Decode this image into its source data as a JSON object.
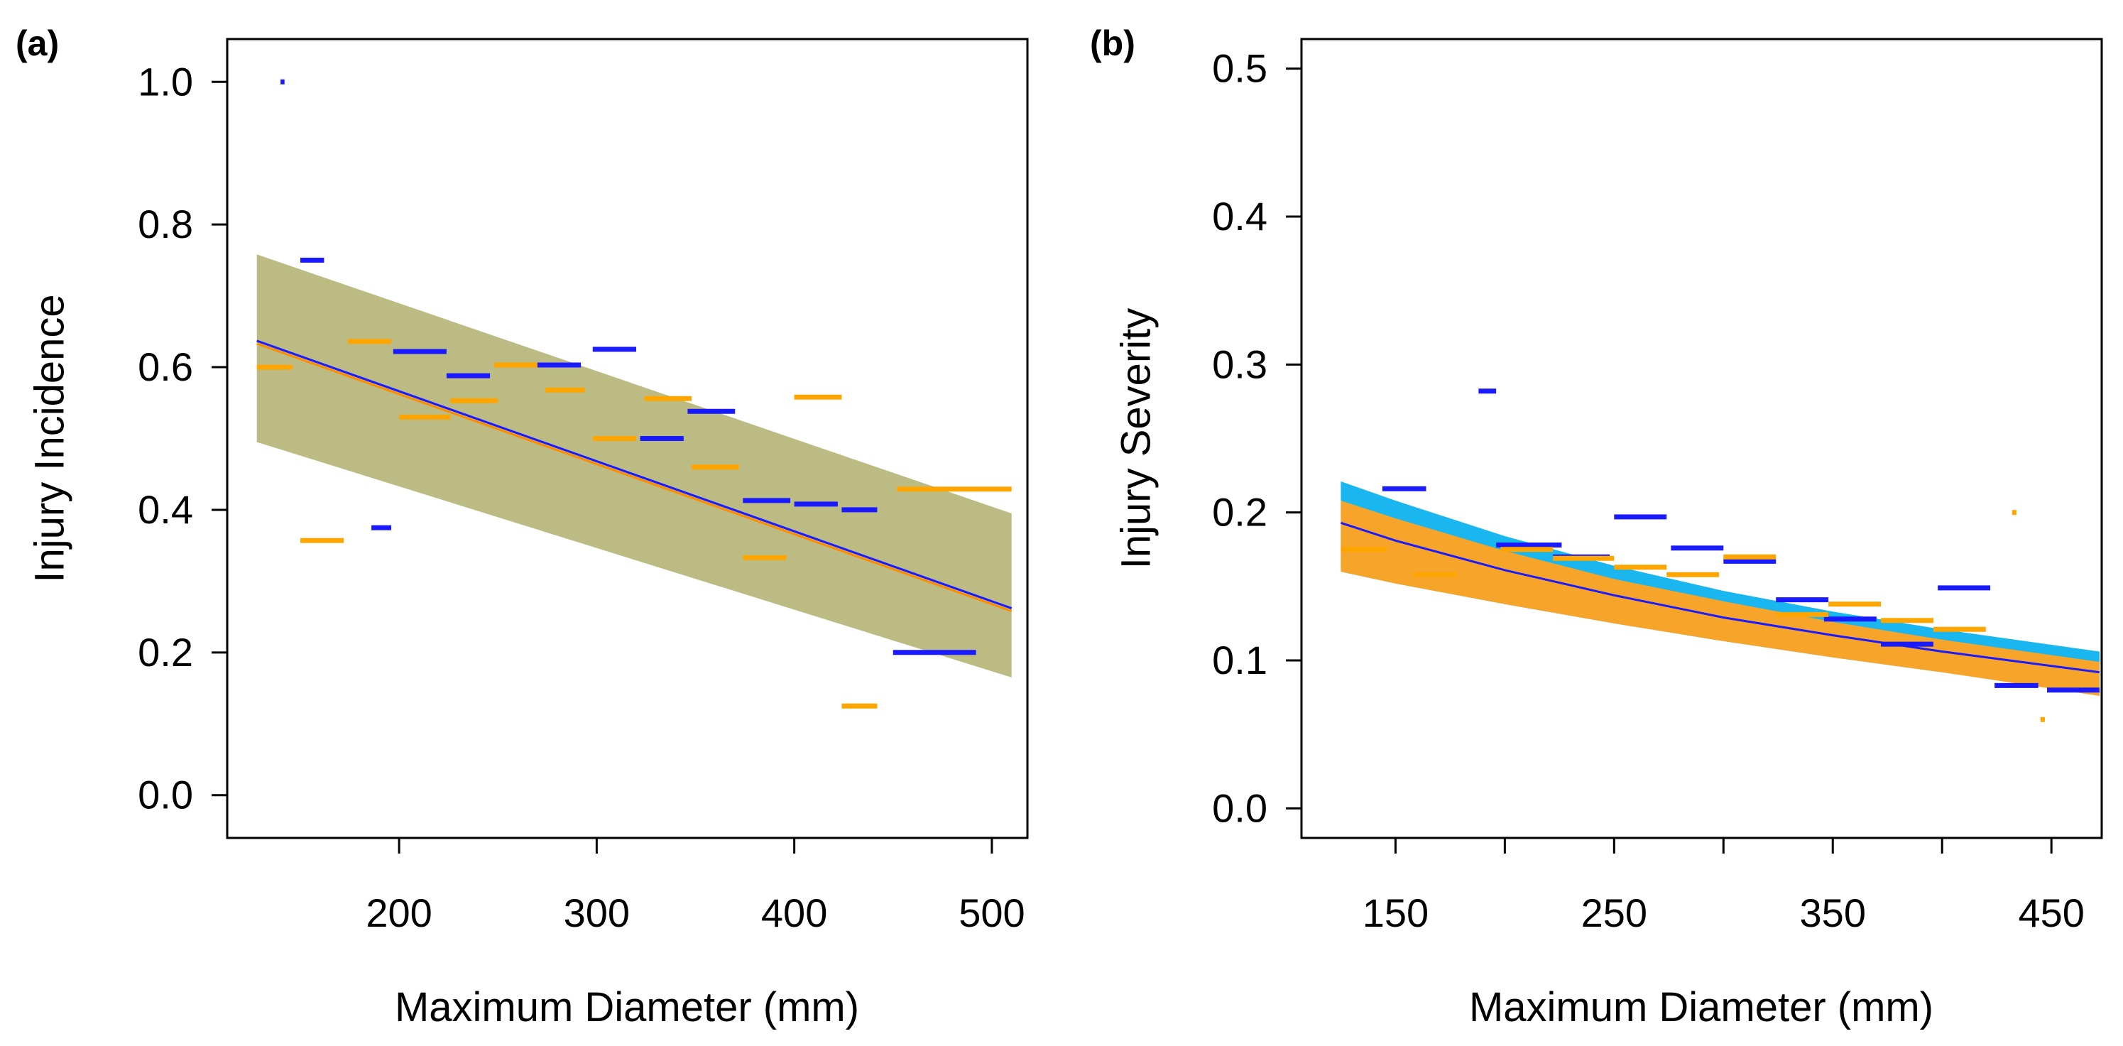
{
  "chart_data": [
    {
      "type": "scatter",
      "panel_label": "(a)",
      "xlabel": "Maximum Diameter (mm)",
      "ylabel": "Injury Incidence",
      "xlim": [
        113,
        518
      ],
      "ylim": [
        -0.06,
        1.06
      ],
      "xticks": [
        200,
        300,
        400,
        500
      ],
      "xtick_labels": [
        "200",
        "300",
        "400",
        "500"
      ],
      "yticks": [
        0.0,
        0.2,
        0.4,
        0.6,
        0.8,
        1.0
      ],
      "ytick_labels": [
        "0.0",
        "0.2",
        "0.4",
        "0.6",
        "0.8",
        "1.0"
      ],
      "band": {
        "color": "#bdbb84",
        "x": [
          128,
          510
        ],
        "lower": [
          0.495,
          0.165
        ],
        "upper": [
          0.758,
          0.395
        ]
      },
      "fit_lines": [
        {
          "name": "orange fit",
          "color": "#ff8c00",
          "x": [
            128,
            510
          ],
          "y": [
            0.633,
            0.258
          ]
        },
        {
          "name": "blue fit",
          "color": "#1a1aff",
          "x": [
            128,
            510
          ],
          "y": [
            0.637,
            0.262
          ]
        }
      ],
      "series": [
        {
          "name": "blue",
          "color": "#1a1aff",
          "segments": [
            {
              "x0": 140,
              "x1": 142,
              "y": 1.0
            },
            {
              "x0": 150,
              "x1": 162,
              "y": 0.75
            },
            {
              "x0": 186,
              "x1": 196,
              "y": 0.375
            },
            {
              "x0": 197,
              "x1": 224,
              "y": 0.622
            },
            {
              "x0": 224,
              "x1": 246,
              "y": 0.588
            },
            {
              "x0": 268,
              "x1": 292,
              "y": 0.603
            },
            {
              "x0": 298,
              "x1": 320,
              "y": 0.625
            },
            {
              "x0": 322,
              "x1": 344,
              "y": 0.5
            },
            {
              "x0": 346,
              "x1": 370,
              "y": 0.538
            },
            {
              "x0": 374,
              "x1": 398,
              "y": 0.413
            },
            {
              "x0": 400,
              "x1": 422,
              "y": 0.408
            },
            {
              "x0": 424,
              "x1": 442,
              "y": 0.4
            },
            {
              "x0": 450,
              "x1": 492,
              "y": 0.2
            }
          ]
        },
        {
          "name": "orange",
          "color": "#ffa500",
          "segments": [
            {
              "x0": 128,
              "x1": 146,
              "y": 0.6
            },
            {
              "x0": 150,
              "x1": 172,
              "y": 0.357
            },
            {
              "x0": 174,
              "x1": 196,
              "y": 0.636
            },
            {
              "x0": 200,
              "x1": 226,
              "y": 0.53
            },
            {
              "x0": 226,
              "x1": 250,
              "y": 0.553
            },
            {
              "x0": 248,
              "x1": 270,
              "y": 0.603
            },
            {
              "x0": 274,
              "x1": 294,
              "y": 0.568
            },
            {
              "x0": 298,
              "x1": 320,
              "y": 0.5
            },
            {
              "x0": 324,
              "x1": 348,
              "y": 0.556
            },
            {
              "x0": 348,
              "x1": 372,
              "y": 0.46
            },
            {
              "x0": 374,
              "x1": 396,
              "y": 0.333
            },
            {
              "x0": 400,
              "x1": 424,
              "y": 0.558
            },
            {
              "x0": 424,
              "x1": 442,
              "y": 0.125
            },
            {
              "x0": 452,
              "x1": 510,
              "y": 0.429
            }
          ]
        }
      ]
    },
    {
      "type": "scatter",
      "panel_label": "(b)",
      "xlabel": "Maximum Diameter (mm)",
      "ylabel": "Injury Severity",
      "xlim": [
        107,
        473
      ],
      "ylim": [
        -0.02,
        0.52
      ],
      "xticks": [
        150,
        200,
        250,
        300,
        350,
        400,
        450
      ],
      "xtick_labels": [
        "150",
        "",
        "250",
        "",
        "350",
        "",
        "450"
      ],
      "yticks": [
        0.0,
        0.1,
        0.2,
        0.3,
        0.4,
        0.5
      ],
      "ytick_labels": [
        "0.0",
        "0.1",
        "0.2",
        "0.3",
        "0.4",
        "0.5"
      ],
      "bands": [
        {
          "name": "blue ci",
          "color": "#19b6f0",
          "x": [
            125,
            150,
            200,
            250,
            300,
            350,
            400,
            472
          ],
          "lower": [
            0.16,
            0.152,
            0.138,
            0.125,
            0.113,
            0.102,
            0.092,
            0.078
          ],
          "upper": [
            0.221,
            0.208,
            0.184,
            0.164,
            0.147,
            0.133,
            0.121,
            0.106
          ]
        },
        {
          "name": "orange ci",
          "color": "#f7a52a",
          "x": [
            125,
            150,
            200,
            250,
            300,
            350,
            400,
            472
          ],
          "lower": [
            0.16,
            0.152,
            0.138,
            0.125,
            0.113,
            0.102,
            0.092,
            0.076
          ],
          "upper": [
            0.208,
            0.196,
            0.174,
            0.155,
            0.14,
            0.126,
            0.114,
            0.099
          ]
        }
      ],
      "fit_lines": [
        {
          "name": "blue fit",
          "color": "#1a1aff",
          "x": [
            125,
            150,
            200,
            250,
            300,
            350,
            400,
            472
          ],
          "y": [
            0.193,
            0.181,
            0.161,
            0.144,
            0.129,
            0.117,
            0.106,
            0.092
          ]
        }
      ],
      "series": [
        {
          "name": "blue",
          "color": "#1a1aff",
          "segments": [
            {
              "x0": 144,
              "x1": 164,
              "y": 0.216
            },
            {
              "x0": 188,
              "x1": 196,
              "y": 0.282
            },
            {
              "x0": 196,
              "x1": 226,
              "y": 0.178
            },
            {
              "x0": 222,
              "x1": 248,
              "y": 0.17
            },
            {
              "x0": 250,
              "x1": 274,
              "y": 0.197
            },
            {
              "x0": 276,
              "x1": 300,
              "y": 0.176
            },
            {
              "x0": 300,
              "x1": 324,
              "y": 0.167
            },
            {
              "x0": 324,
              "x1": 348,
              "y": 0.141
            },
            {
              "x0": 346,
              "x1": 370,
              "y": 0.128
            },
            {
              "x0": 372,
              "x1": 396,
              "y": 0.111
            },
            {
              "x0": 398,
              "x1": 422,
              "y": 0.149
            },
            {
              "x0": 424,
              "x1": 444,
              "y": 0.083
            },
            {
              "x0": 448,
              "x1": 472,
              "y": 0.08
            }
          ]
        },
        {
          "name": "orange",
          "color": "#ffa500",
          "segments": [
            {
              "x0": 125,
              "x1": 146,
              "y": 0.175
            },
            {
              "x0": 158,
              "x1": 178,
              "y": 0.158
            },
            {
              "x0": 198,
              "x1": 222,
              "y": 0.175
            },
            {
              "x0": 222,
              "x1": 250,
              "y": 0.169
            },
            {
              "x0": 250,
              "x1": 274,
              "y": 0.163
            },
            {
              "x0": 274,
              "x1": 298,
              "y": 0.158
            },
            {
              "x0": 300,
              "x1": 324,
              "y": 0.17
            },
            {
              "x0": 324,
              "x1": 348,
              "y": 0.131
            },
            {
              "x0": 348,
              "x1": 372,
              "y": 0.138
            },
            {
              "x0": 372,
              "x1": 396,
              "y": 0.127
            },
            {
              "x0": 396,
              "x1": 420,
              "y": 0.121
            },
            {
              "x0": 432,
              "x1": 434,
              "y": 0.2
            },
            {
              "x0": 445,
              "x1": 447,
              "y": 0.06
            }
          ]
        }
      ]
    }
  ]
}
